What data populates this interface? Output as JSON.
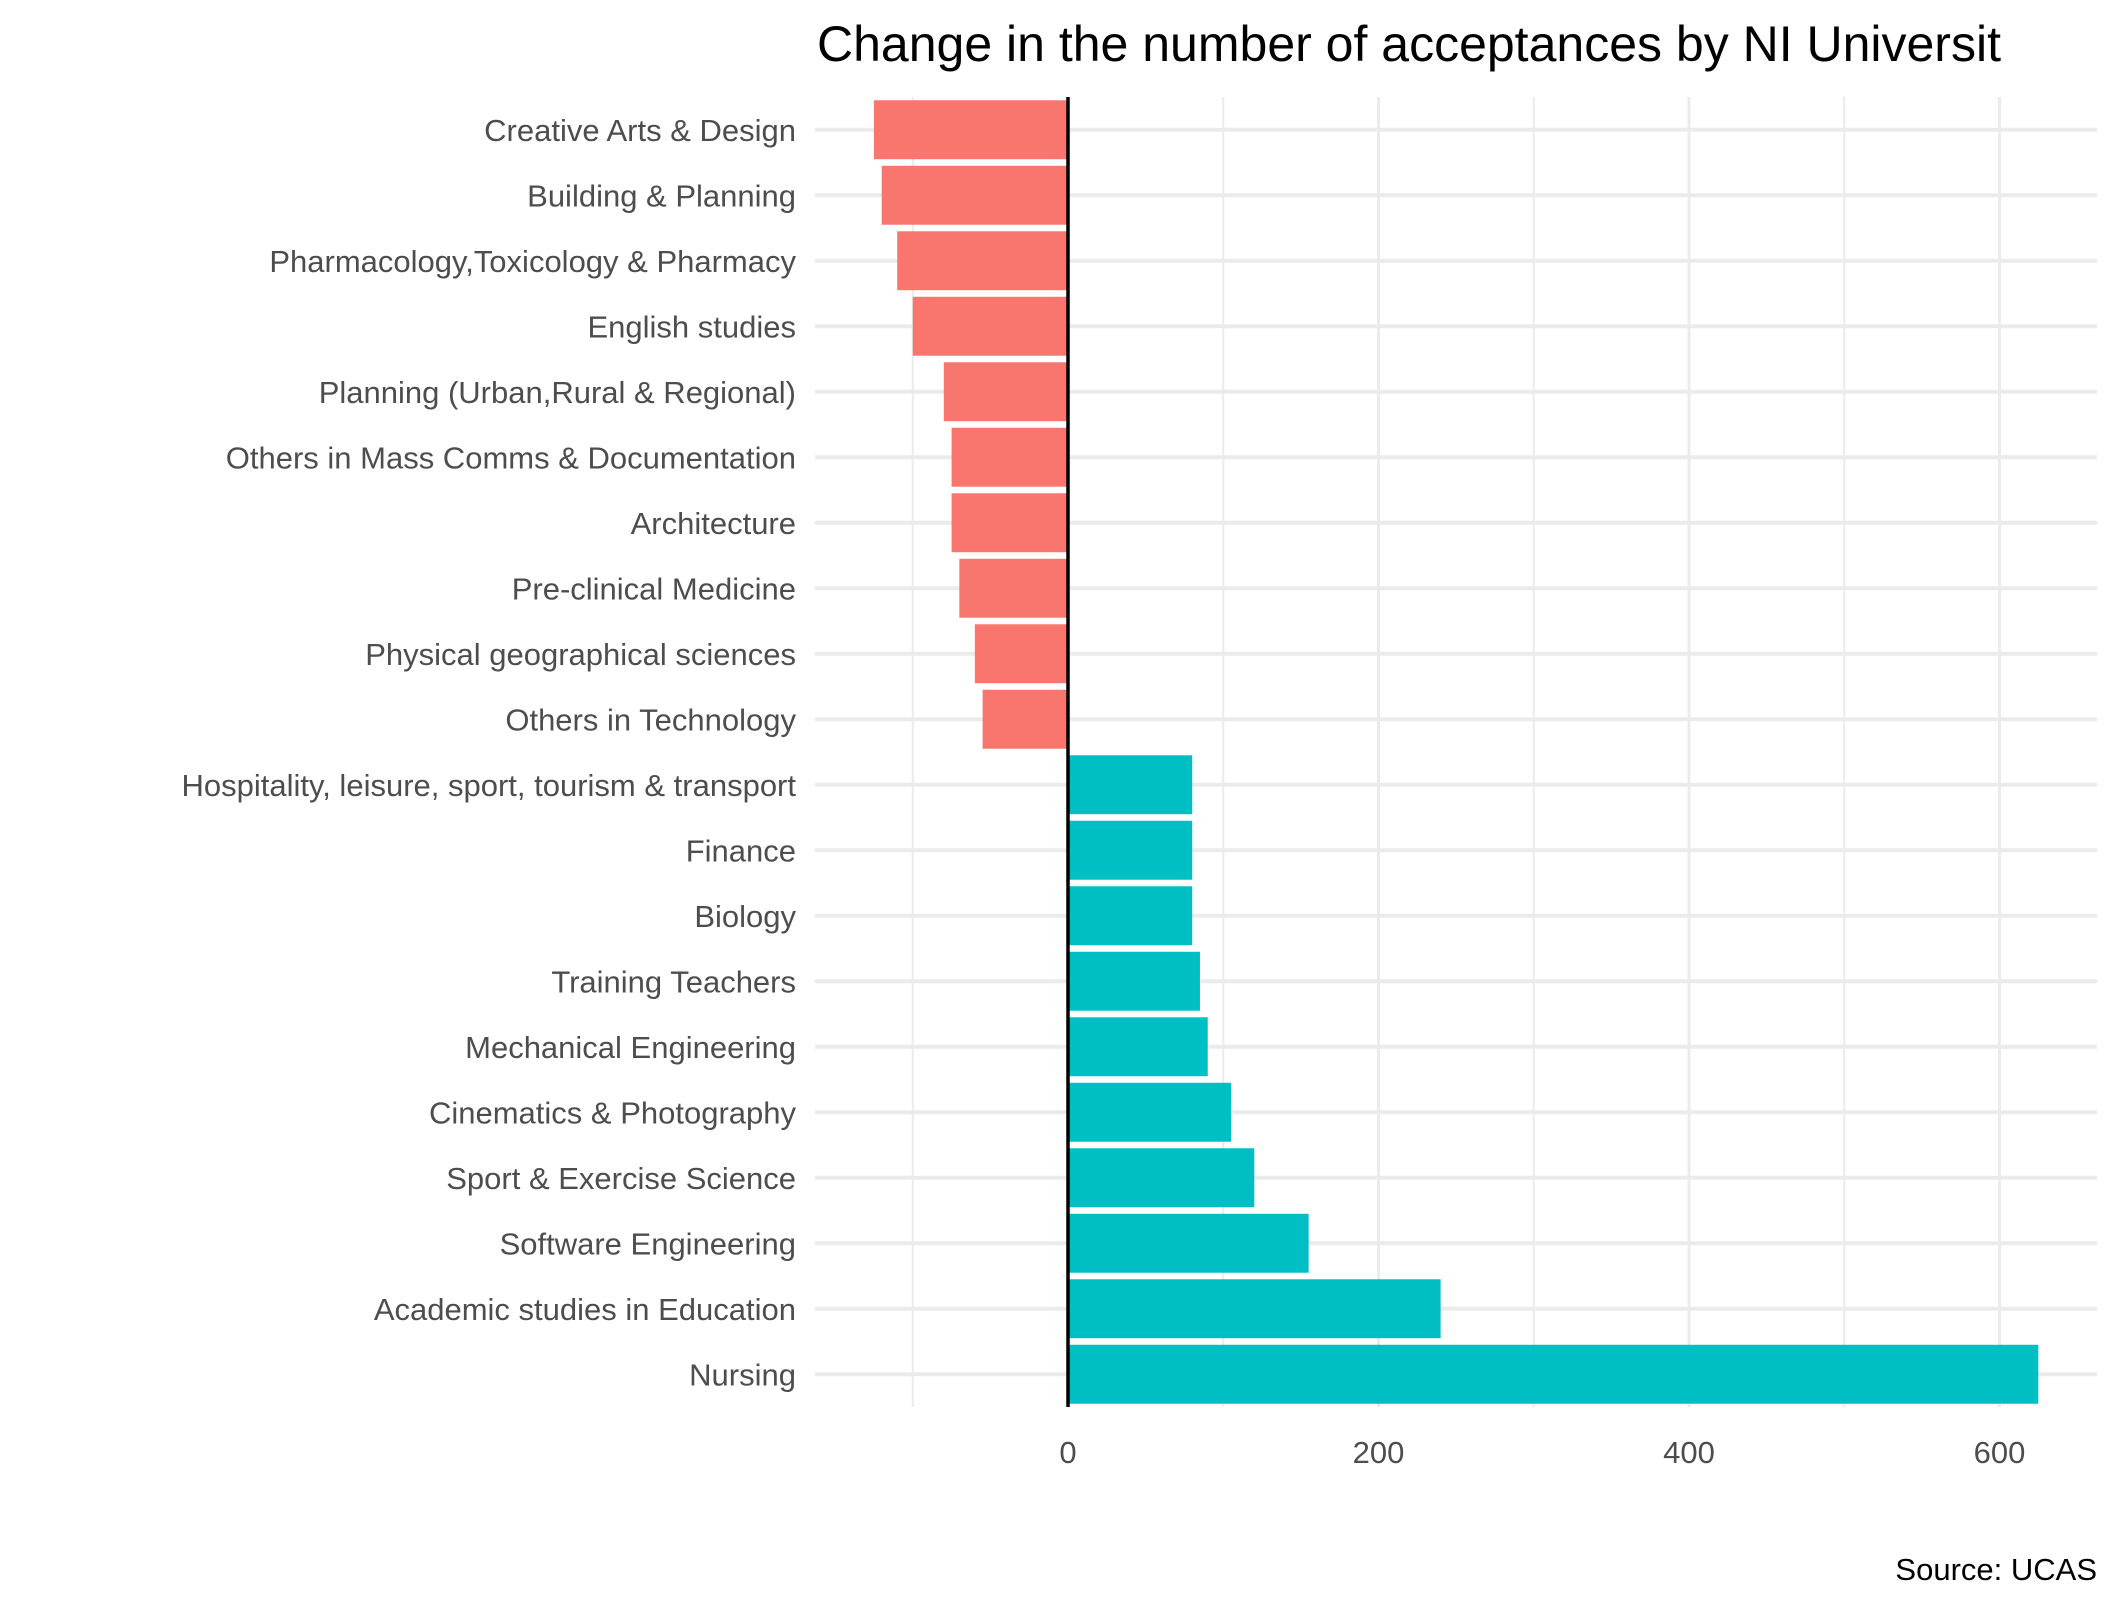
{
  "chart_data": {
    "type": "bar",
    "orientation": "horizontal",
    "title": "Change in the number of acceptances by NI Universit",
    "caption": "Source: UCAS",
    "xlabel": "",
    "ylabel": "",
    "xlim": [
      -165,
      665
    ],
    "x_ticks": [
      0,
      200,
      400,
      600
    ],
    "grid": true,
    "legend": "none",
    "colors": {
      "negative": "#F8766D",
      "positive": "#00BFC4",
      "zero_line": "#000000",
      "grid": "#ebebeb"
    },
    "categories": [
      "Creative Arts & Design",
      "Building & Planning",
      "Pharmacology,Toxicology & Pharmacy",
      "English studies",
      "Planning (Urban,Rural & Regional)",
      "Others in Mass Comms & Documentation",
      "Architecture",
      "Pre-clinical Medicine",
      "Physical geographical sciences",
      "Others in Technology",
      "Hospitality, leisure, sport, tourism & transport",
      "Finance",
      "Biology",
      "Training Teachers",
      "Mechanical Engineering",
      "Cinematics & Photography",
      "Sport & Exercise Science",
      "Software Engineering",
      "Academic studies in Education",
      "Nursing"
    ],
    "values": [
      -125,
      -120,
      -110,
      -100,
      -80,
      -75,
      -75,
      -70,
      -60,
      -55,
      80,
      80,
      80,
      85,
      90,
      105,
      120,
      155,
      240,
      625
    ]
  }
}
